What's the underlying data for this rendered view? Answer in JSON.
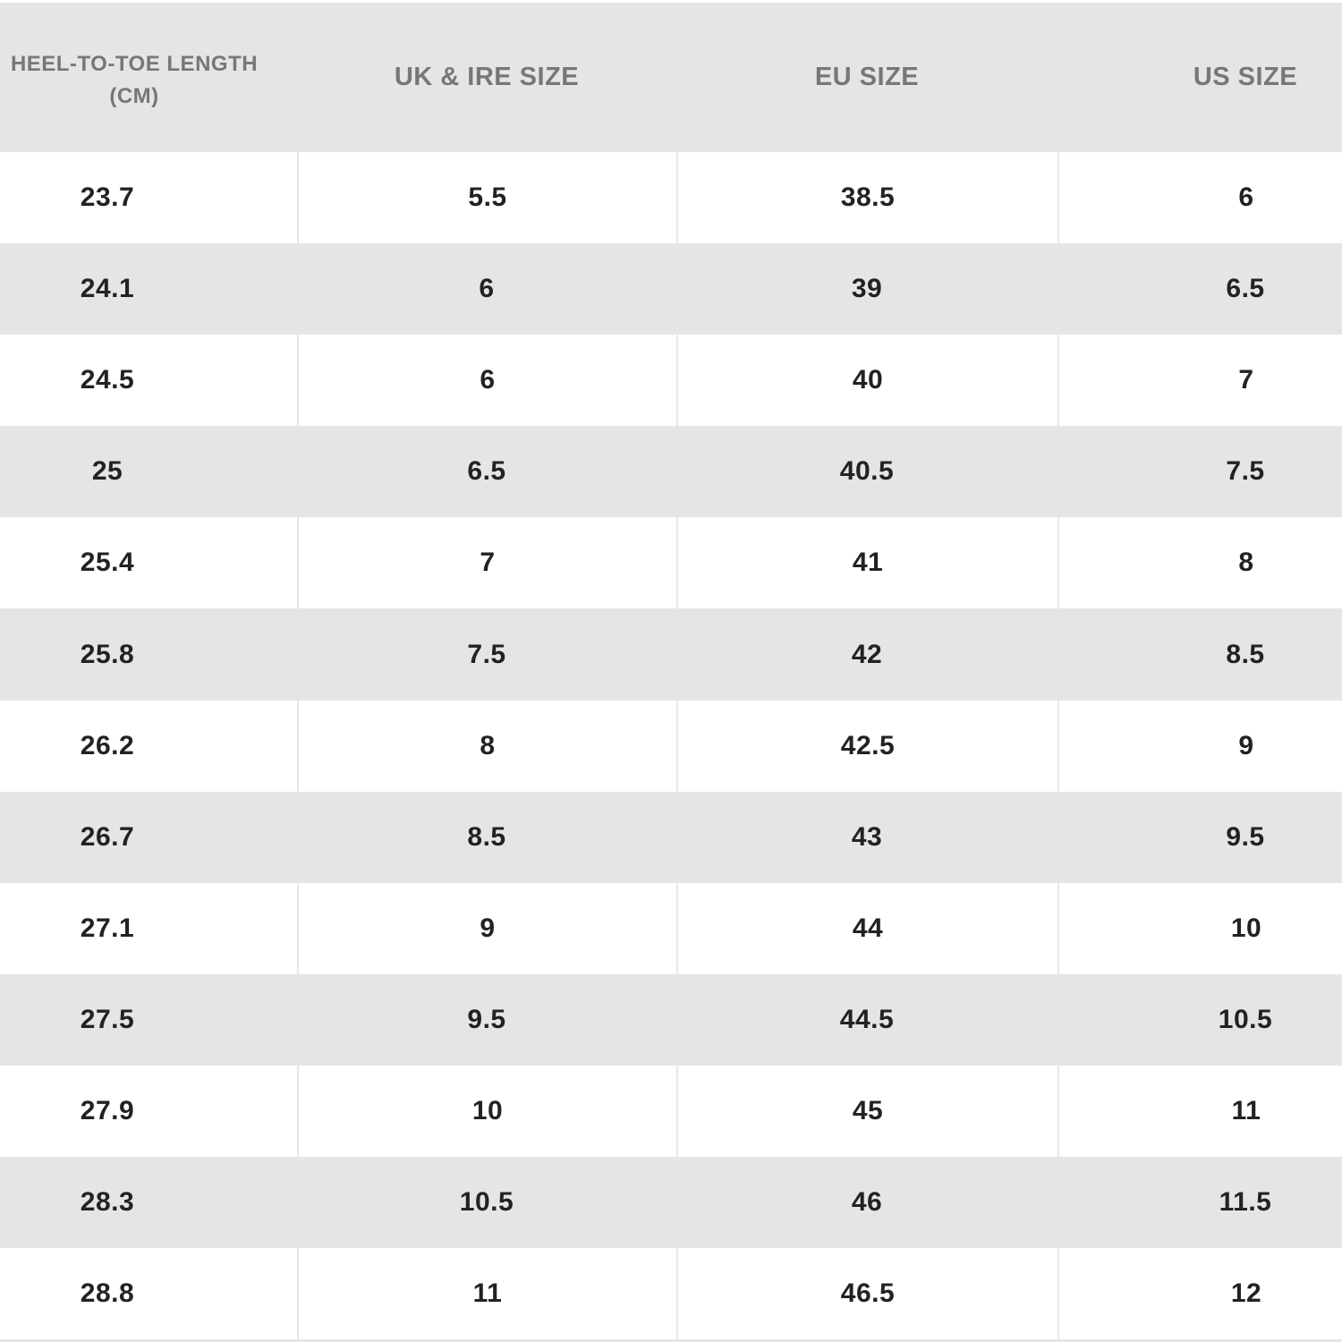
{
  "table": {
    "headers": [
      "HEEL-TO-TOE LENGTH",
      "UK & IRE SIZE",
      "EU SIZE",
      "US SIZE"
    ],
    "header_unit": "(CM)",
    "rows": [
      [
        "23.7",
        "5.5",
        "38.5",
        "6"
      ],
      [
        "24.1",
        "6",
        "39",
        "6.5"
      ],
      [
        "24.5",
        "6",
        "40",
        "7"
      ],
      [
        "25",
        "6.5",
        "40.5",
        "7.5"
      ],
      [
        "25.4",
        "7",
        "41",
        "8"
      ],
      [
        "25.8",
        "7.5",
        "42",
        "8.5"
      ],
      [
        "26.2",
        "8",
        "42.5",
        "9"
      ],
      [
        "26.7",
        "8.5",
        "43",
        "9.5"
      ],
      [
        "27.1",
        "9",
        "44",
        "10"
      ],
      [
        "27.5",
        "9.5",
        "44.5",
        "10.5"
      ],
      [
        "27.9",
        "10",
        "45",
        "11"
      ],
      [
        "28.3",
        "10.5",
        "46",
        "11.5"
      ],
      [
        "28.8",
        "11",
        "46.5",
        "12"
      ]
    ]
  },
  "colors": {
    "header_bg": "#e5e5e5",
    "alt_row_bg": "#e5e5e5",
    "header_text": "#777777",
    "body_text": "#222222"
  }
}
